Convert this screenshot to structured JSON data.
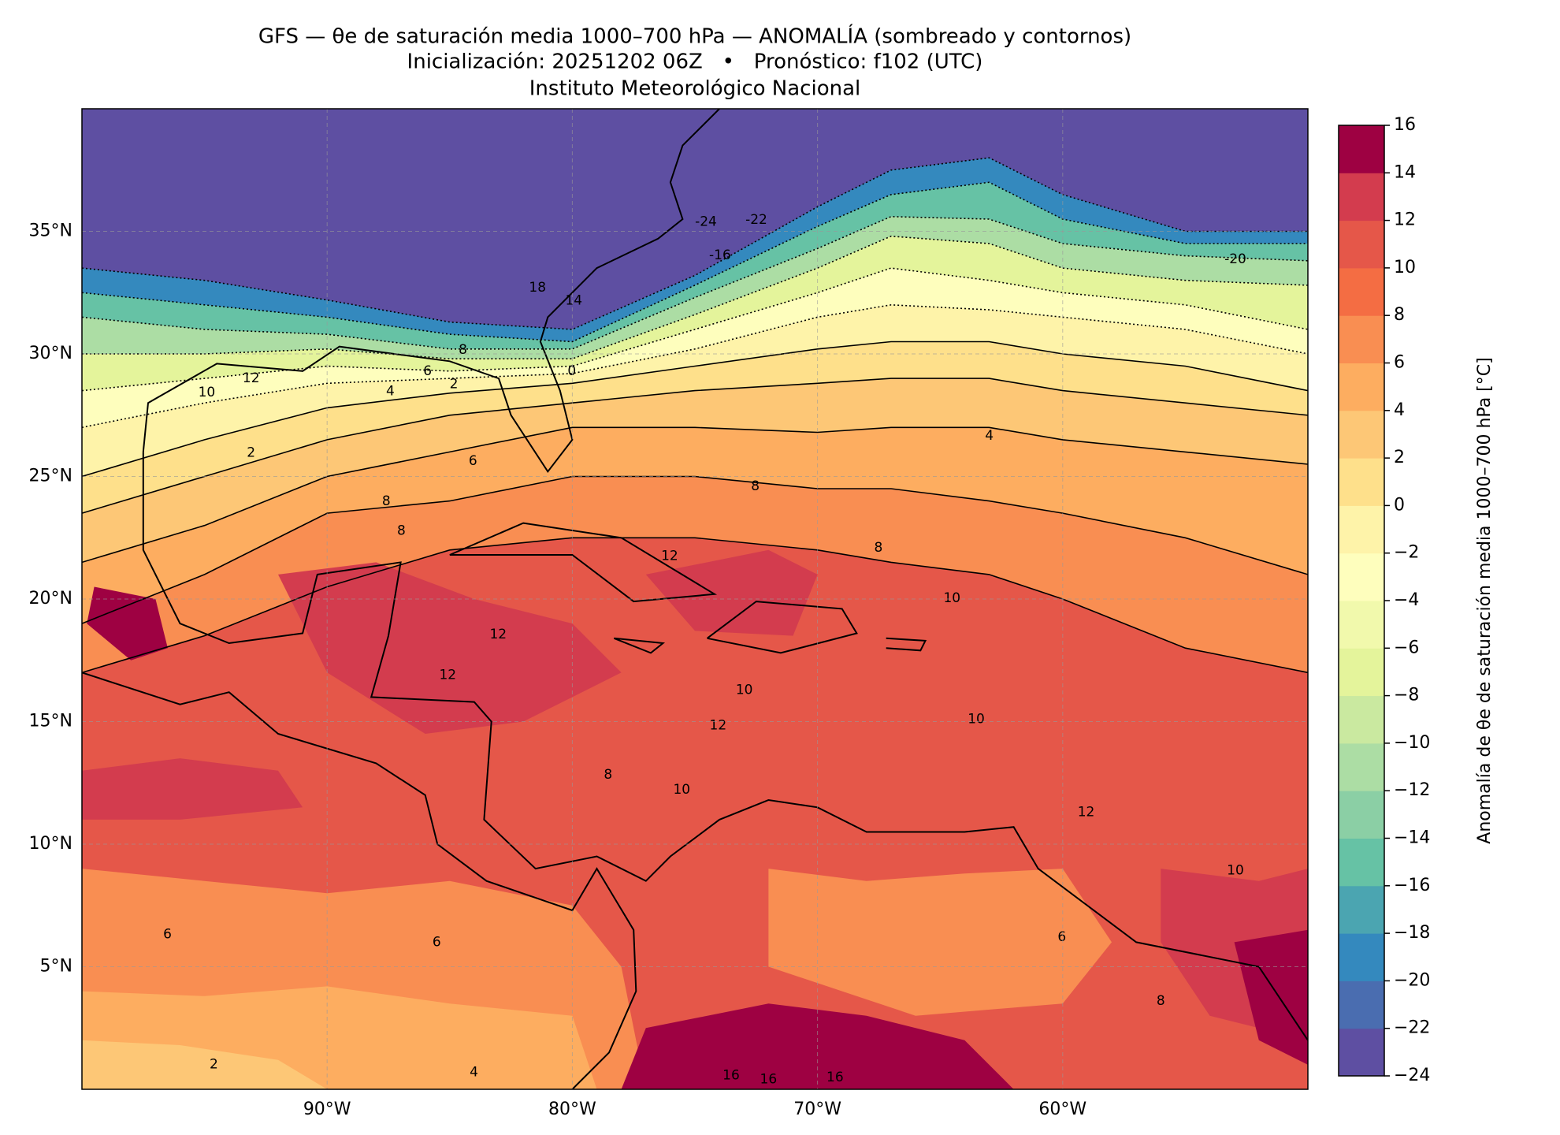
{
  "map": {
    "title": "GFS — θe de saturación media 1000–700 hPa — ANOMALÍA (sombreado y contornos)",
    "subtitle": "Inicialización: 20251202 06Z   •   Pronóstico: f102 (UTC)",
    "credit": "Instituto Meteorológico Nacional",
    "xlim": [
      -100,
      -50
    ],
    "ylim": [
      0,
      40
    ],
    "xticks": [
      {
        "value": -90,
        "label": "90°W"
      },
      {
        "value": -80,
        "label": "80°W"
      },
      {
        "value": -70,
        "label": "70°W"
      },
      {
        "value": -60,
        "label": "60°W"
      }
    ],
    "yticks": [
      {
        "value": 5,
        "label": "5°N"
      },
      {
        "value": 10,
        "label": "10°N"
      },
      {
        "value": 15,
        "label": "15°N"
      },
      {
        "value": 20,
        "label": "20°N"
      },
      {
        "value": 25,
        "label": "25°N"
      },
      {
        "value": 30,
        "label": "30°N"
      },
      {
        "value": 35,
        "label": "35°N"
      }
    ],
    "grid": true,
    "contour_labels": [
      -24,
      -22,
      -16,
      18,
      14,
      -20,
      10,
      12,
      4,
      6,
      2,
      8,
      0,
      2,
      6,
      4,
      8,
      8,
      8,
      12,
      8,
      10,
      12,
      12,
      10,
      12,
      10,
      8,
      10,
      12,
      10,
      6,
      6,
      16,
      16,
      16,
      4,
      2,
      8,
      6
    ],
    "colorbar": {
      "label": "Anomalía de θe de saturación media 1000–700 hPa [°C]",
      "ticks": [
        {
          "value": -24,
          "label": "−24"
        },
        {
          "value": -22,
          "label": "−22"
        },
        {
          "value": -20,
          "label": "−20"
        },
        {
          "value": -18,
          "label": "−18"
        },
        {
          "value": -16,
          "label": "−16"
        },
        {
          "value": -14,
          "label": "−14"
        },
        {
          "value": -12,
          "label": "−12"
        },
        {
          "value": -10,
          "label": "−10"
        },
        {
          "value": -8,
          "label": "−8"
        },
        {
          "value": -6,
          "label": "−6"
        },
        {
          "value": -4,
          "label": "−4"
        },
        {
          "value": -2,
          "label": "−2"
        },
        0,
        2,
        4,
        6,
        8,
        10,
        12,
        14,
        16
      ],
      "colors": [
        "#5e4fa2",
        "#4a6db0",
        "#3489be",
        "#4ba5b1",
        "#66c2a5",
        "#8bcfa5",
        "#acdda4",
        "#cae9a0",
        "#e4f49b",
        "#f1f9ac",
        "#fefebd",
        "#fef3a9",
        "#fee08b",
        "#fdc776",
        "#fdad60",
        "#f98e52",
        "#f46d43",
        "#e55749",
        "#d33c4e",
        "#9e0142"
      ]
    }
  }
}
